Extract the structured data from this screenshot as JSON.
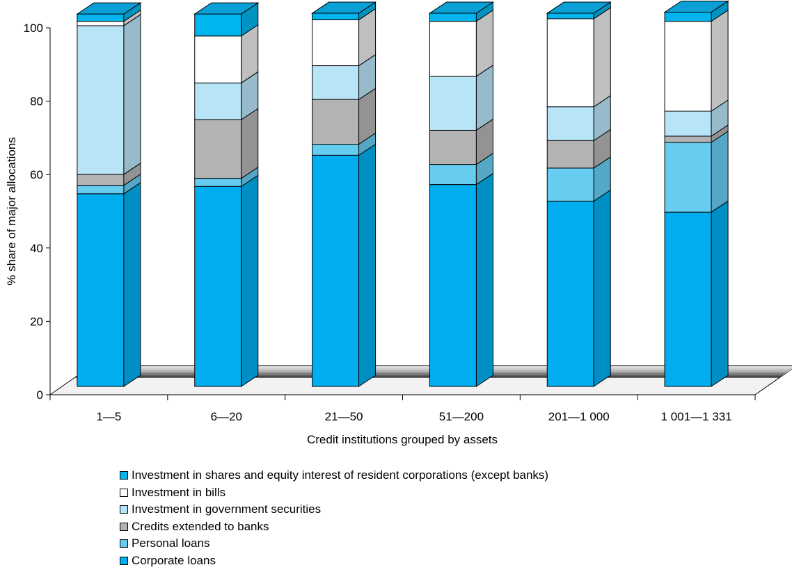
{
  "chart_data": {
    "type": "bar",
    "stacked": true,
    "three_d": true,
    "categories": [
      "1—5",
      "6—20",
      "21—50",
      "51—200",
      "201—1 000",
      "1 001—1 331"
    ],
    "xlabel": "Credit institutions grouped by assets",
    "ylabel": "% share of major allocations",
    "ylim": [
      0,
      100
    ],
    "yticks": [
      "0",
      "20",
      "40",
      "60",
      "80",
      "100"
    ],
    "series": [
      {
        "name": "Corporate loans",
        "color": "#00aeef",
        "values": [
          52.5,
          54.5,
          63,
          55,
          50.5,
          47.5
        ]
      },
      {
        "name": "Personal loans",
        "color": "#66ccf0",
        "values": [
          2.3,
          2.2,
          3,
          5.5,
          9,
          19
        ]
      },
      {
        "name": "Credits  extended to banks",
        "color": "#b3b3b3",
        "values": [
          3,
          16,
          12.2,
          9.3,
          7.5,
          1.7
        ]
      },
      {
        "name": "Investment in government securities",
        "color": "#b8e4f7",
        "values": [
          40.5,
          10,
          9.2,
          14.7,
          9.2,
          6.8
        ]
      },
      {
        "name": "Investment in bills",
        "color": "#ffffff",
        "values": [
          1.2,
          12.8,
          12.5,
          15,
          24,
          24.5
        ]
      },
      {
        "name": "Investment in shares and equity interest of resident corporations (except banks)",
        "color": "#00b5ee",
        "values": [
          2,
          6,
          1.8,
          2.2,
          1.5,
          2.5
        ]
      }
    ],
    "legend_order": [
      5,
      4,
      3,
      2,
      1,
      0
    ],
    "legend_position": "bottom",
    "grid": false
  }
}
